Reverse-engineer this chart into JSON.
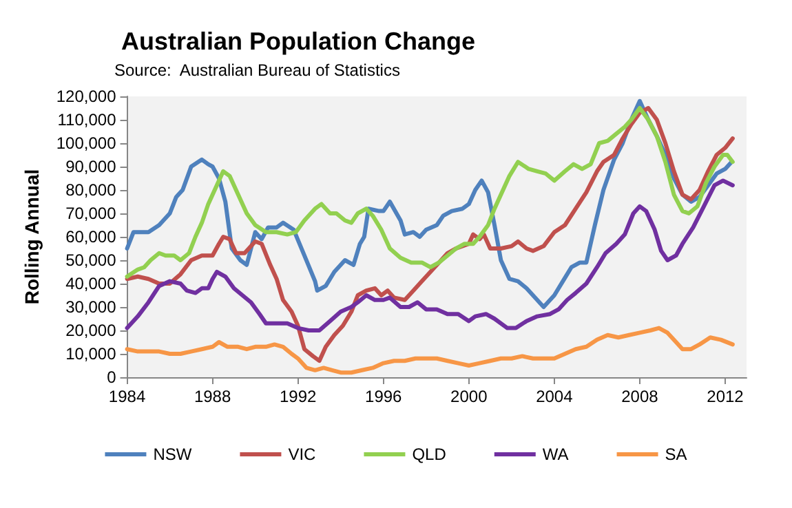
{
  "chart_data": {
    "type": "line",
    "title": "Australian Population Change",
    "annotations": [
      "Source:  Australian Bureau of Statistics"
    ],
    "ylabel": "Rolling Annual",
    "xlim": [
      1984,
      2013
    ],
    "xticks": [
      1984,
      1988,
      1992,
      1996,
      2000,
      2004,
      2008,
      2012
    ],
    "ylim": [
      0,
      120000
    ],
    "yticks": [
      0,
      {
        "value": 10000,
        "label": "10,000"
      },
      {
        "value": 20000,
        "label": "20,000"
      },
      {
        "value": 30000,
        "label": "30,000"
      },
      {
        "value": 40000,
        "label": "40,000"
      },
      {
        "value": 50000,
        "label": "50,000"
      },
      {
        "value": 60000,
        "label": "60,000"
      },
      {
        "value": 70000,
        "label": "70,000"
      },
      {
        "value": 80000,
        "label": "80,000"
      },
      {
        "value": 90000,
        "label": "90,000"
      },
      {
        "value": 100000,
        "label": "100,000"
      },
      {
        "value": 110000,
        "label": "110,000"
      },
      {
        "value": 120000,
        "label": "120,000"
      }
    ],
    "grid": false,
    "legend": "bottom",
    "marker": "none",
    "line_style": "solid",
    "series": [
      {
        "name": "NSW",
        "color": "#4f81bd",
        "x": [
          1984,
          1984.3,
          1985,
          1985.5,
          1986,
          1986.3,
          1986.6,
          1987,
          1987.5,
          1987.8,
          1988,
          1988.3,
          1988.6,
          1988.9,
          1989.3,
          1989.6,
          1990,
          1990.3,
          1990.6,
          1991,
          1991.3,
          1991.8,
          1992.3,
          1992.8,
          1992.9,
          1993.3,
          1993.7,
          1994.2,
          1994.6,
          1994.9,
          1995.1,
          1995.3,
          1995.8,
          1996,
          1996.3,
          1996.8,
          1997,
          1997.4,
          1997.7,
          1998,
          1998.5,
          1998.8,
          1999.2,
          1999.7,
          2000,
          2000.3,
          2000.6,
          2000.9,
          2001.2,
          2001.5,
          2001.9,
          2002.3,
          2002.7,
          2003.2,
          2003.5,
          2004,
          2004.4,
          2004.8,
          2005.2,
          2005.5,
          2005.9,
          2006.3,
          2006.8,
          2007.2,
          2007.6,
          2008,
          2008.4,
          2008.8,
          2009.2,
          2009.6,
          2010,
          2010.4,
          2010.8,
          2011.2,
          2011.6,
          2012,
          2012.3
        ],
        "values": [
          55000,
          62000,
          62000,
          65000,
          70000,
          77000,
          80000,
          90000,
          93000,
          91000,
          90000,
          85000,
          75000,
          55000,
          50000,
          48000,
          62000,
          59000,
          64000,
          64000,
          66000,
          63000,
          52000,
          41000,
          37000,
          39000,
          45000,
          50000,
          48000,
          57000,
          60000,
          72000,
          71000,
          71000,
          75000,
          67000,
          61000,
          62000,
          60000,
          63000,
          65000,
          69000,
          71000,
          72000,
          74000,
          80000,
          84000,
          79000,
          65000,
          50000,
          42000,
          41000,
          38000,
          33000,
          30000,
          35000,
          41000,
          47000,
          49000,
          49000,
          65000,
          80000,
          93000,
          100000,
          110000,
          118000,
          110000,
          103000,
          95000,
          85000,
          78000,
          75000,
          77000,
          82000,
          87000,
          89000,
          92000
        ]
      },
      {
        "name": "VIC",
        "color": "#c0504d",
        "x": [
          1984,
          1984.5,
          1985,
          1985.5,
          1986,
          1986.5,
          1987,
          1987.5,
          1988,
          1988.3,
          1988.5,
          1988.8,
          1989.1,
          1989.5,
          1990,
          1990.3,
          1990.7,
          1991,
          1991.3,
          1991.7,
          1992,
          1992.3,
          1992.7,
          1993,
          1993.3,
          1993.7,
          1994.1,
          1994.5,
          1994.8,
          1995.2,
          1995.6,
          1995.9,
          1996.2,
          1996.5,
          1997,
          1997.4,
          1997.8,
          1998.2,
          1998.6,
          1999,
          1999.4,
          2000,
          2000.2,
          2000.5,
          2000.7,
          2001,
          2001.5,
          2002,
          2002.3,
          2002.7,
          2003,
          2003.5,
          2004,
          2004.5,
          2005,
          2005.5,
          2006,
          2006.3,
          2006.8,
          2007.2,
          2007.6,
          2008,
          2008.4,
          2008.8,
          2009.2,
          2009.6,
          2010,
          2010.4,
          2010.8,
          2011.2,
          2011.6,
          2012,
          2012.35
        ],
        "values": [
          42000,
          43000,
          42000,
          40000,
          40000,
          44000,
          50000,
          52000,
          52000,
          57000,
          60000,
          59000,
          53000,
          53000,
          58000,
          57000,
          48000,
          42000,
          33000,
          28000,
          22000,
          12000,
          9000,
          7000,
          13000,
          18000,
          22000,
          28000,
          35000,
          37000,
          38000,
          35000,
          37000,
          34000,
          33000,
          37000,
          41000,
          45000,
          49000,
          53000,
          55000,
          57000,
          61000,
          59000,
          61000,
          55000,
          55000,
          56000,
          58000,
          55000,
          54000,
          56000,
          62000,
          65000,
          72000,
          79000,
          88000,
          92000,
          95000,
          102000,
          108000,
          113000,
          115000,
          110000,
          100000,
          88000,
          78000,
          76000,
          80000,
          88000,
          95000,
          98000,
          102000
        ]
      },
      {
        "name": "QLD",
        "color": "#92d050",
        "x": [
          1984,
          1984.5,
          1984.8,
          1985.1,
          1985.5,
          1985.8,
          1986.2,
          1986.5,
          1986.9,
          1987.2,
          1987.5,
          1987.8,
          1988.2,
          1988.5,
          1988.8,
          1989.2,
          1989.6,
          1990,
          1990.5,
          1991,
          1991.5,
          1991.9,
          1992.3,
          1992.8,
          1993.1,
          1993.5,
          1993.8,
          1994.2,
          1994.5,
          1994.8,
          1995.2,
          1995.5,
          1995.9,
          1996.3,
          1996.8,
          1997.3,
          1997.8,
          1998.2,
          1998.6,
          1999,
          1999.4,
          1999.8,
          2000.2,
          2000.5,
          2000.9,
          2001.2,
          2001.5,
          2001.9,
          2002.3,
          2002.8,
          2003.2,
          2003.6,
          2004,
          2004.5,
          2004.9,
          2005.3,
          2005.7,
          2006.1,
          2006.5,
          2006.9,
          2007.3,
          2007.6,
          2008,
          2008.4,
          2008.8,
          2009.2,
          2009.6,
          2010,
          2010.3,
          2010.7,
          2011.1,
          2011.5,
          2011.9,
          2012.1,
          2012.35
        ],
        "values": [
          43000,
          46000,
          47000,
          50000,
          53000,
          52000,
          52000,
          50000,
          53000,
          60000,
          66000,
          74000,
          82000,
          88000,
          86000,
          78000,
          70000,
          65000,
          62000,
          62000,
          61000,
          62000,
          67000,
          72000,
          74000,
          70000,
          70000,
          67000,
          66000,
          70000,
          72000,
          69000,
          63000,
          55000,
          51000,
          49000,
          49000,
          47000,
          49000,
          52000,
          55000,
          57000,
          57000,
          60000,
          65000,
          72000,
          78000,
          86000,
          92000,
          89000,
          88000,
          87000,
          84000,
          88000,
          91000,
          89000,
          91000,
          100000,
          101000,
          104000,
          107000,
          110000,
          115000,
          110000,
          103000,
          92000,
          78000,
          71000,
          70000,
          73000,
          83000,
          90000,
          95000,
          95000,
          92000
        ]
      },
      {
        "name": "WA",
        "color": "#7030a0",
        "x": [
          1984,
          1984.5,
          1985,
          1985.5,
          1986,
          1986.5,
          1986.8,
          1987.2,
          1987.5,
          1987.8,
          1988,
          1988.2,
          1988.6,
          1989,
          1989.4,
          1989.8,
          1990.2,
          1990.5,
          1991,
          1991.5,
          1992,
          1992.5,
          1993,
          1993.5,
          1994,
          1994.5,
          1994.8,
          1995.2,
          1995.6,
          1996,
          1996.3,
          1996.8,
          1997.2,
          1997.6,
          1998,
          1998.5,
          1999,
          1999.5,
          2000,
          2000.3,
          2000.8,
          2001.2,
          2001.8,
          2002.2,
          2002.7,
          2003.2,
          2003.8,
          2004.2,
          2004.6,
          2005,
          2005.5,
          2006,
          2006.4,
          2006.9,
          2007.3,
          2007.7,
          2008,
          2008.3,
          2008.7,
          2009,
          2009.3,
          2009.7,
          2010,
          2010.5,
          2011,
          2011.5,
          2011.9,
          2012.35
        ],
        "values": [
          21000,
          26000,
          32000,
          39000,
          41000,
          40000,
          37000,
          36000,
          38000,
          38000,
          42000,
          45000,
          43000,
          38000,
          35000,
          32000,
          27000,
          23000,
          23000,
          23000,
          21000,
          20000,
          20000,
          24000,
          28000,
          30000,
          32000,
          35000,
          33000,
          33000,
          34000,
          30000,
          30000,
          32000,
          29000,
          29000,
          27000,
          27000,
          24000,
          26000,
          27000,
          25000,
          21000,
          21000,
          24000,
          26000,
          27000,
          29000,
          33000,
          36000,
          40000,
          47000,
          53000,
          57000,
          61000,
          70000,
          73000,
          71000,
          63000,
          54000,
          50000,
          52000,
          57000,
          64000,
          73000,
          82000,
          84000,
          82000
        ]
      },
      {
        "name": "SA",
        "color": "#f79646",
        "x": [
          1984,
          1984.5,
          1985,
          1985.5,
          1986,
          1986.5,
          1987,
          1987.5,
          1988,
          1988.3,
          1988.7,
          1989.2,
          1989.6,
          1990,
          1990.5,
          1990.9,
          1991.3,
          1991.7,
          1992,
          1992.4,
          1992.8,
          1993.2,
          1993.6,
          1994,
          1994.5,
          1995,
          1995.5,
          1996,
          1996.5,
          1997,
          1997.5,
          1998,
          1998.5,
          1999,
          1999.5,
          2000,
          2000.5,
          2001,
          2001.5,
          2002,
          2002.5,
          2003,
          2003.5,
          2004,
          2004.5,
          2005,
          2005.5,
          2006,
          2006.5,
          2007,
          2007.5,
          2008,
          2008.5,
          2008.9,
          2009.3,
          2009.7,
          2010,
          2010.4,
          2010.8,
          2011.3,
          2011.8,
          2012.35
        ],
        "values": [
          12000,
          11000,
          11000,
          11000,
          10000,
          10000,
          11000,
          12000,
          13000,
          15000,
          13000,
          13000,
          12000,
          13000,
          13000,
          14000,
          13000,
          10000,
          8000,
          4000,
          3000,
          4000,
          3000,
          2000,
          2000,
          3000,
          4000,
          6000,
          7000,
          7000,
          8000,
          8000,
          8000,
          7000,
          6000,
          5000,
          6000,
          7000,
          8000,
          8000,
          9000,
          8000,
          8000,
          8000,
          10000,
          12000,
          13000,
          16000,
          18000,
          17000,
          18000,
          19000,
          20000,
          21000,
          19000,
          15000,
          12000,
          12000,
          14000,
          17000,
          16000,
          14000
        ]
      }
    ]
  }
}
